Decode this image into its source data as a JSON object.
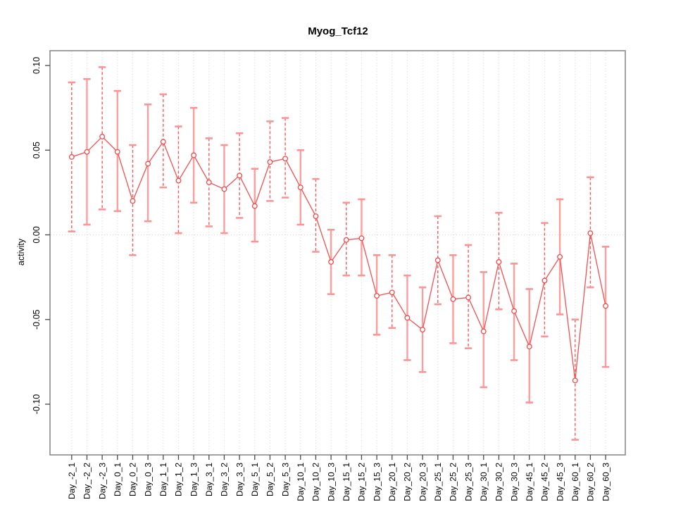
{
  "chart_data": {
    "type": "line",
    "title": "Myog_Tcf12",
    "xlabel": "",
    "ylabel": "activity",
    "legend": "none",
    "marker": "open-circle",
    "grid": "dotted vertical gridline at each category; dotted horizontal line at y=0",
    "ylim": [
      -0.13,
      0.11
    ],
    "yticks": [
      0.1,
      0.05,
      0.0,
      -0.05,
      -0.1
    ],
    "ytick_labels": [
      "0.10",
      "0.05",
      "0.00",
      "-0.05",
      "-0.10"
    ],
    "categories": [
      "Day_-2_1",
      "Day_-2_2",
      "Day_-2_3",
      "Day_0_1",
      "Day_0_2",
      "Day_0_3",
      "Day_1_1",
      "Day_1_2",
      "Day_1_3",
      "Day_3_1",
      "Day_3_2",
      "Day_3_3",
      "Day_5_1",
      "Day_5_2",
      "Day_5_3",
      "Day_10_1",
      "Day_10_2",
      "Day_10_3",
      "Day_15_1",
      "Day_15_2",
      "Day_15_3",
      "Day_20_1",
      "Day_20_2",
      "Day_20_3",
      "Day_25_1",
      "Day_25_2",
      "Day_25_3",
      "Day_30_1",
      "Day_30_2",
      "Day_30_3",
      "Day_45_1",
      "Day_45_2",
      "Day_45_3",
      "Day_60_1",
      "Day_60_2",
      "Day_60_3"
    ],
    "series": [
      {
        "name": "activity",
        "values": [
          0.046,
          0.049,
          0.058,
          0.049,
          0.02,
          0.042,
          0.055,
          0.032,
          0.047,
          0.031,
          0.027,
          0.035,
          0.017,
          0.043,
          0.045,
          0.028,
          0.011,
          -0.016,
          -0.003,
          -0.002,
          -0.036,
          -0.034,
          -0.049,
          -0.056,
          -0.015,
          -0.038,
          -0.037,
          -0.057,
          -0.016,
          -0.045,
          -0.066,
          -0.027,
          -0.013,
          -0.086,
          0.001,
          -0.042
        ],
        "ci_low": [
          0.002,
          0.006,
          0.015,
          0.014,
          -0.012,
          0.008,
          0.028,
          0.001,
          0.019,
          0.005,
          0.001,
          0.01,
          -0.004,
          0.02,
          0.022,
          0.006,
          -0.01,
          -0.035,
          -0.024,
          -0.024,
          -0.059,
          -0.055,
          -0.074,
          -0.081,
          -0.041,
          -0.064,
          -0.067,
          -0.09,
          -0.044,
          -0.074,
          -0.099,
          -0.06,
          -0.047,
          -0.121,
          -0.031,
          -0.078
        ],
        "ci_high": [
          0.09,
          0.092,
          0.099,
          0.085,
          0.053,
          0.077,
          0.083,
          0.064,
          0.075,
          0.057,
          0.053,
          0.06,
          0.039,
          0.067,
          0.069,
          0.05,
          0.033,
          0.003,
          0.019,
          0.021,
          -0.012,
          -0.012,
          -0.024,
          -0.031,
          0.011,
          -0.012,
          -0.006,
          -0.022,
          0.013,
          -0.017,
          -0.032,
          0.007,
          0.021,
          -0.05,
          0.034,
          -0.007
        ]
      }
    ],
    "error_bar_styles": [
      "dashed",
      "solid",
      "dashed",
      "solid",
      "dashed",
      "solid",
      "dashed",
      "dashed",
      "solid",
      "dashed",
      "solid",
      "dashed",
      "solid",
      "dashed",
      "dashed",
      "solid",
      "dashed",
      "solid",
      "dashed",
      "solid",
      "solid",
      "dashed",
      "solid",
      "solid",
      "dashed",
      "solid",
      "dashed",
      "solid",
      "dashed",
      "solid",
      "solid",
      "dashed",
      "solid",
      "dashed",
      "dashed",
      "solid"
    ],
    "colors": {
      "point": "#f14b4b",
      "line": "#f25050",
      "errorbar_dashed": "#f65a5a",
      "errorbar_solid": "#ff9d9d",
      "cap": "#fb9494",
      "grid": "#d6d6d6",
      "zero_line": "#d6d6d6",
      "axis_box": "#8a8a8a",
      "tick": "#4a4a4a",
      "text": "#000000"
    }
  }
}
